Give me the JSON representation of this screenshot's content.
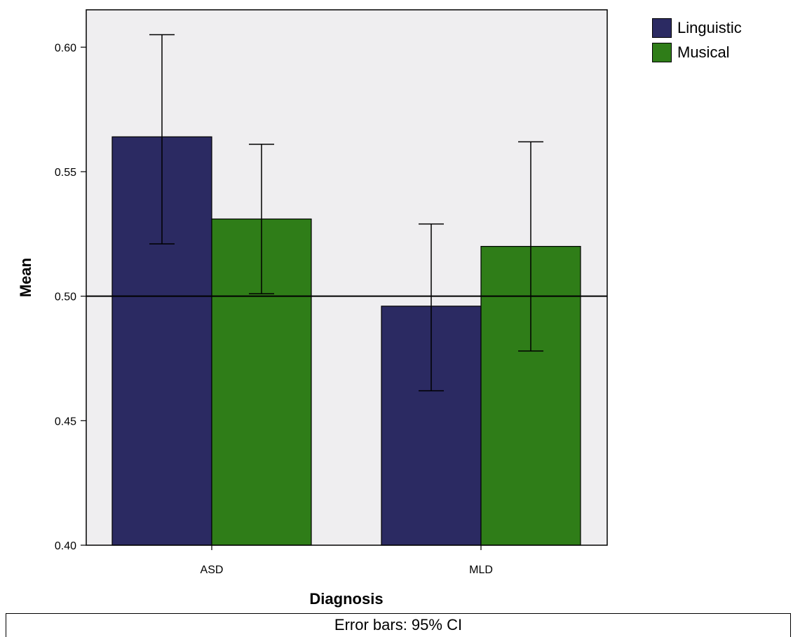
{
  "chart_data": {
    "type": "bar",
    "categories": [
      "ASD",
      "MLD"
    ],
    "series": [
      {
        "name": "Linguistic",
        "color": "#2b2a62",
        "values": [
          0.564,
          0.496
        ],
        "ci_low": [
          0.521,
          0.462
        ],
        "ci_high": [
          0.605,
          0.529
        ]
      },
      {
        "name": "Musical",
        "color": "#2f7d18",
        "values": [
          0.531,
          0.52
        ],
        "ci_low": [
          0.501,
          0.478
        ],
        "ci_high": [
          0.561,
          0.562
        ]
      }
    ],
    "reference_line": 0.5,
    "xlabel": "Diagnosis",
    "ylabel": "Mean",
    "ylim": [
      0.4,
      0.615
    ],
    "yticks": [
      "0.40",
      "0.45",
      "0.50",
      "0.55",
      "0.60"
    ],
    "legend_position": "top-right",
    "grid": false,
    "footnote": "Error bars: 95% CI"
  }
}
